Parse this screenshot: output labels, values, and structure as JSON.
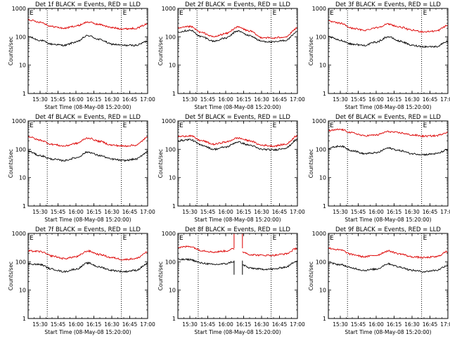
{
  "figure": {
    "detectors": [
      "1f",
      "2f",
      "3f",
      "4f",
      "5f",
      "6f",
      "7f",
      "8f",
      "9f"
    ]
  },
  "colors": {
    "events": "#000000",
    "lld": "#dd0000",
    "axes": "#000000",
    "background": "#ffffff"
  },
  "chart_data": [
    {
      "type": "line",
      "panel": 1,
      "title": "Det 1f BLACK = Events, RED = LLD",
      "ylabel": "Counts/sec",
      "xlabel": "Start Time (08-May-08 15:20:00)",
      "yscale": "log",
      "ylim": [
        1,
        1000
      ],
      "xlim": [
        "15:20",
        "17:00"
      ],
      "xticks": [
        "15:30",
        "15:45",
        "16:00",
        "16:15",
        "16:30",
        "16:45",
        "17:00"
      ],
      "yticks": [
        "1",
        "10",
        "100",
        "1000"
      ],
      "markers": [
        {
          "time": "15:20",
          "label": "E"
        },
        {
          "time": "15:36",
          "label": ""
        },
        {
          "time": "16:38",
          "label": "E"
        }
      ],
      "x": [
        "15:20",
        "15:30",
        "15:40",
        "15:50",
        "16:00",
        "16:10",
        "16:20",
        "16:30",
        "16:40",
        "16:50",
        "17:00"
      ],
      "series": [
        {
          "name": "Events",
          "color": "black",
          "values": [
            100,
            75,
            55,
            50,
            65,
            110,
            80,
            55,
            50,
            50,
            70
          ]
        },
        {
          "name": "LLD",
          "color": "red",
          "values": [
            400,
            330,
            230,
            200,
            240,
            330,
            270,
            210,
            190,
            200,
            280
          ]
        }
      ]
    },
    {
      "type": "line",
      "panel": 2,
      "title": "Det 2f BLACK = Events, RED = LLD",
      "ylabel": "Counts/sec",
      "xlabel": "Start Time (08-May-08 15:20:00)",
      "yscale": "log",
      "ylim": [
        1,
        1000
      ],
      "xlim": [
        "15:20",
        "17:00"
      ],
      "xticks": [
        "15:30",
        "15:45",
        "16:00",
        "16:15",
        "16:30",
        "16:45",
        "17:00"
      ],
      "yticks": [
        "1",
        "10",
        "100",
        "1000"
      ],
      "markers": [
        {
          "time": "15:20",
          "label": "E"
        },
        {
          "time": "15:36",
          "label": ""
        },
        {
          "time": "16:38",
          "label": "E"
        }
      ],
      "x": [
        "15:20",
        "15:30",
        "15:40",
        "15:50",
        "16:00",
        "16:10",
        "16:20",
        "16:30",
        "16:40",
        "16:50",
        "17:00"
      ],
      "series": [
        {
          "name": "Events",
          "color": "black",
          "values": [
            150,
            170,
            100,
            70,
            90,
            160,
            110,
            70,
            65,
            75,
            150
          ]
        },
        {
          "name": "LLD",
          "color": "red",
          "values": [
            200,
            230,
            140,
            100,
            130,
            220,
            160,
            95,
            90,
            100,
            200
          ]
        }
      ]
    },
    {
      "type": "line",
      "panel": 3,
      "title": "Det 3f BLACK = Events, RED = LLD",
      "ylabel": "Counts/sec",
      "xlabel": "Start Time (08-May-08 15:20:00)",
      "yscale": "log",
      "ylim": [
        1,
        1000
      ],
      "xlim": [
        "15:20",
        "17:00"
      ],
      "xticks": [
        "15:30",
        "15:45",
        "16:00",
        "16:15",
        "16:30",
        "16:45",
        "17:00"
      ],
      "yticks": [
        "1",
        "10",
        "100",
        "1000"
      ],
      "markers": [
        {
          "time": "15:20",
          "label": "E"
        },
        {
          "time": "15:36",
          "label": ""
        },
        {
          "time": "16:38",
          "label": "E"
        }
      ],
      "x": [
        "15:20",
        "15:30",
        "15:40",
        "15:50",
        "16:00",
        "16:10",
        "16:20",
        "16:30",
        "16:40",
        "16:50",
        "17:00"
      ],
      "series": [
        {
          "name": "Events",
          "color": "black",
          "values": [
            100,
            75,
            55,
            50,
            65,
            100,
            70,
            50,
            45,
            45,
            70
          ]
        },
        {
          "name": "LLD",
          "color": "red",
          "values": [
            350,
            300,
            200,
            170,
            210,
            280,
            220,
            170,
            150,
            160,
            250
          ]
        }
      ]
    },
    {
      "type": "line",
      "panel": 4,
      "title": "Det 4f BLACK = Events, RED = LLD",
      "ylabel": "Counts/sec",
      "xlabel": "Start Time (08-May-08 15:20:00)",
      "yscale": "log",
      "ylim": [
        1,
        1000
      ],
      "xlim": [
        "15:20",
        "17:00"
      ],
      "xticks": [
        "15:30",
        "15:45",
        "16:00",
        "16:15",
        "16:30",
        "16:45",
        "17:00"
      ],
      "yticks": [
        "1",
        "10",
        "100",
        "1000"
      ],
      "markers": [
        {
          "time": "15:20",
          "label": "E"
        },
        {
          "time": "15:36",
          "label": ""
        },
        {
          "time": "16:38",
          "label": "E"
        }
      ],
      "x": [
        "15:20",
        "15:30",
        "15:40",
        "15:50",
        "16:00",
        "16:10",
        "16:20",
        "16:30",
        "16:40",
        "16:50",
        "17:00"
      ],
      "series": [
        {
          "name": "Events",
          "color": "black",
          "values": [
            85,
            60,
            45,
            40,
            50,
            80,
            60,
            45,
            40,
            45,
            80
          ]
        },
        {
          "name": "LLD",
          "color": "red",
          "values": [
            280,
            210,
            150,
            130,
            160,
            250,
            190,
            140,
            130,
            140,
            260
          ]
        }
      ]
    },
    {
      "type": "line",
      "panel": 5,
      "title": "Det 5f BLACK = Events, RED = LLD",
      "ylabel": "Counts/sec",
      "xlabel": "Start Time (08-May-08 15:20:00)",
      "yscale": "log",
      "ylim": [
        1,
        1000
      ],
      "xlim": [
        "15:20",
        "17:00"
      ],
      "xticks": [
        "15:30",
        "15:45",
        "16:00",
        "16:15",
        "16:30",
        "16:45",
        "17:00"
      ],
      "yticks": [
        "1",
        "10",
        "100",
        "1000"
      ],
      "markers": [
        {
          "time": "15:20",
          "label": "E"
        },
        {
          "time": "15:36",
          "label": ""
        },
        {
          "time": "16:38",
          "label": "E"
        }
      ],
      "x": [
        "15:20",
        "15:30",
        "15:40",
        "15:50",
        "16:00",
        "16:10",
        "16:20",
        "16:30",
        "16:40",
        "16:50",
        "17:00"
      ],
      "series": [
        {
          "name": "Events",
          "color": "black",
          "values": [
            200,
            220,
            140,
            100,
            120,
            180,
            140,
            100,
            95,
            110,
            220
          ]
        },
        {
          "name": "LLD",
          "color": "red",
          "values": [
            280,
            300,
            200,
            150,
            180,
            250,
            200,
            140,
            130,
            150,
            300
          ]
        }
      ]
    },
    {
      "type": "line",
      "panel": 6,
      "title": "Det 6f BLACK = Events, RED = LLD",
      "ylabel": "Counts/sec",
      "xlabel": "Start Time (08-May-08 15:20:00)",
      "yscale": "log",
      "ylim": [
        1,
        1000
      ],
      "xlim": [
        "15:20",
        "17:00"
      ],
      "xticks": [
        "15:30",
        "15:45",
        "16:00",
        "16:15",
        "16:30",
        "16:45",
        "17:00"
      ],
      "yticks": [
        "1",
        "10",
        "100",
        "1000"
      ],
      "markers": [
        {
          "time": "15:20",
          "label": "E"
        },
        {
          "time": "15:36",
          "label": ""
        },
        {
          "time": "16:38",
          "label": "E"
        }
      ],
      "x": [
        "15:20",
        "15:30",
        "15:40",
        "15:50",
        "16:00",
        "16:10",
        "16:20",
        "16:30",
        "16:40",
        "16:50",
        "17:00"
      ],
      "series": [
        {
          "name": "Events",
          "color": "black",
          "values": [
            110,
            130,
            90,
            70,
            75,
            110,
            90,
            70,
            65,
            70,
            95
          ]
        },
        {
          "name": "LLD",
          "color": "red",
          "values": [
            450,
            500,
            380,
            300,
            320,
            420,
            380,
            320,
            290,
            300,
            400
          ]
        }
      ]
    },
    {
      "type": "line",
      "panel": 7,
      "title": "Det 7f BLACK = Events, RED = LLD",
      "ylabel": "Counts/sec",
      "xlabel": "Start Time (08-May-08 15:20:00)",
      "yscale": "log",
      "ylim": [
        1,
        1000
      ],
      "xlim": [
        "15:20",
        "17:00"
      ],
      "xticks": [
        "15:30",
        "15:45",
        "16:00",
        "16:15",
        "16:30",
        "16:45",
        "17:00"
      ],
      "yticks": [
        "1",
        "10",
        "100",
        "1000"
      ],
      "markers": [
        {
          "time": "15:20",
          "label": "E"
        },
        {
          "time": "15:36",
          "label": ""
        },
        {
          "time": "16:38",
          "label": "E"
        }
      ],
      "x": [
        "15:20",
        "15:30",
        "15:40",
        "15:50",
        "16:00",
        "16:10",
        "16:20",
        "16:30",
        "16:40",
        "16:50",
        "17:00"
      ],
      "series": [
        {
          "name": "Events",
          "color": "black",
          "values": [
            85,
            80,
            55,
            45,
            55,
            90,
            65,
            50,
            45,
            50,
            85
          ]
        },
        {
          "name": "LLD",
          "color": "red",
          "values": [
            240,
            230,
            160,
            130,
            150,
            240,
            180,
            140,
            120,
            130,
            220
          ]
        }
      ]
    },
    {
      "type": "line",
      "panel": 8,
      "title": "Det 8f BLACK = Events, RED = LLD",
      "ylabel": "Counts/sec",
      "xlabel": "Start Time (08-May-08 15:20:00)",
      "yscale": "log",
      "ylim": [
        1,
        1000
      ],
      "xlim": [
        "15:20",
        "17:00"
      ],
      "xticks": [
        "15:30",
        "15:45",
        "16:00",
        "16:15",
        "16:30",
        "16:45",
        "17:00"
      ],
      "yticks": [
        "1",
        "10",
        "100",
        "1000"
      ],
      "markers": [
        {
          "time": "15:20",
          "label": "E"
        },
        {
          "time": "15:37",
          "label": ""
        },
        {
          "time": "16:38",
          "label": "E"
        }
      ],
      "gap": [
        "16:07",
        "16:14"
      ],
      "x": [
        "15:20",
        "15:30",
        "15:40",
        "15:50",
        "16:00",
        "16:06",
        "16:15",
        "16:20",
        "16:30",
        "16:40",
        "16:50",
        "17:00"
      ],
      "series": [
        {
          "name": "Events",
          "color": "black",
          "values": [
            120,
            120,
            90,
            80,
            85,
            100,
            75,
            60,
            55,
            55,
            65,
            110
          ]
        },
        {
          "name": "LLD",
          "color": "red",
          "values": [
            320,
            350,
            250,
            220,
            240,
            280,
            220,
            180,
            170,
            170,
            190,
            300
          ]
        }
      ]
    },
    {
      "type": "line",
      "panel": 9,
      "title": "Det 9f BLACK = Events, RED = LLD",
      "ylabel": "Counts/sec",
      "xlabel": "Start Time (08-May-08 15:20:00)",
      "yscale": "log",
      "ylim": [
        1,
        1000
      ],
      "xlim": [
        "15:20",
        "17:00"
      ],
      "xticks": [
        "15:30",
        "15:45",
        "16:00",
        "16:15",
        "16:30",
        "16:45",
        "17:00"
      ],
      "yticks": [
        "1",
        "10",
        "100",
        "1000"
      ],
      "markers": [
        {
          "time": "15:20",
          "label": "E"
        },
        {
          "time": "15:36",
          "label": ""
        },
        {
          "time": "16:38",
          "label": "E"
        }
      ],
      "x": [
        "15:20",
        "15:30",
        "15:40",
        "15:50",
        "16:00",
        "16:10",
        "16:20",
        "16:30",
        "16:40",
        "16:50",
        "17:00"
      ],
      "series": [
        {
          "name": "Events",
          "color": "black",
          "values": [
            90,
            80,
            60,
            50,
            55,
            85,
            65,
            50,
            45,
            50,
            75
          ]
        },
        {
          "name": "LLD",
          "color": "red",
          "values": [
            300,
            260,
            180,
            150,
            170,
            240,
            190,
            150,
            140,
            150,
            230
          ]
        }
      ]
    }
  ]
}
